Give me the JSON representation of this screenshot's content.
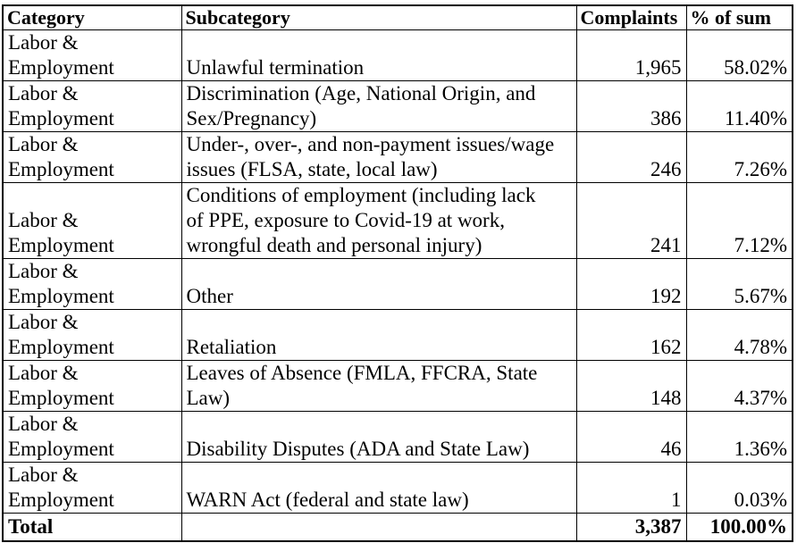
{
  "colors": {
    "background": "#ffffff",
    "border": "#000000",
    "text": "#000000"
  },
  "table": {
    "headers": {
      "category": "Category",
      "subcategory": "Subcategory",
      "complaints": "Complaints",
      "pct": "% of sum"
    },
    "rows": [
      {
        "category": "Labor &\nEmployment",
        "subcategory": "Unlawful termination",
        "complaints": "1,965",
        "pct": "58.02%"
      },
      {
        "category": "Labor &\nEmployment",
        "subcategory": "Discrimination (Age, National Origin, and\nSex/Pregnancy)",
        "complaints": "386",
        "pct": "11.40%"
      },
      {
        "category": "Labor &\nEmployment",
        "subcategory": "Under-, over-, and non-payment issues/wage\nissues (FLSA, state, local law)",
        "complaints": "246",
        "pct": "7.26%"
      },
      {
        "category": "Labor &\nEmployment",
        "subcategory": "Conditions of employment (including lack\nof PPE, exposure to Covid-19 at work,\nwrongful death and personal injury)",
        "complaints": "241",
        "pct": "7.12%"
      },
      {
        "category": "Labor &\nEmployment",
        "subcategory": "Other",
        "complaints": "192",
        "pct": "5.67%"
      },
      {
        "category": "Labor &\nEmployment",
        "subcategory": "Retaliation",
        "complaints": "162",
        "pct": "4.78%"
      },
      {
        "category": "Labor &\nEmployment",
        "subcategory": "Leaves of Absence (FMLA, FFCRA, State\nLaw)",
        "complaints": "148",
        "pct": "4.37%"
      },
      {
        "category": "Labor &\nEmployment",
        "subcategory": "Disability Disputes (ADA and State Law)",
        "complaints": "46",
        "pct": "1.36%"
      },
      {
        "category": "Labor &\nEmployment",
        "subcategory": "WARN Act (federal and state law)",
        "complaints": "1",
        "pct": "0.03%"
      }
    ],
    "total": {
      "label": "Total",
      "subcategory": "",
      "complaints": "3,387",
      "pct": "100.00%"
    }
  },
  "chart_data": {
    "type": "table",
    "columns": [
      "Category",
      "Subcategory",
      "Complaints",
      "% of sum"
    ],
    "rows": [
      [
        "Labor & Employment",
        "Unlawful termination",
        1965,
        58.02
      ],
      [
        "Labor & Employment",
        "Discrimination (Age, National Origin, and Sex/Pregnancy)",
        386,
        11.4
      ],
      [
        "Labor & Employment",
        "Under-, over-, and non-payment issues/wage issues (FLSA, state, local law)",
        246,
        7.26
      ],
      [
        "Labor & Employment",
        "Conditions of employment (including lack of PPE, exposure to Covid-19 at work, wrongful death and personal injury)",
        241,
        7.12
      ],
      [
        "Labor & Employment",
        "Other",
        192,
        5.67
      ],
      [
        "Labor & Employment",
        "Retaliation",
        162,
        4.78
      ],
      [
        "Labor & Employment",
        "Leaves of Absence (FMLA, FFCRA, State Law)",
        148,
        4.37
      ],
      [
        "Labor & Employment",
        "Disability Disputes (ADA and State Law)",
        46,
        1.36
      ],
      [
        "Labor & Employment",
        "WARN Act (federal and state law)",
        1,
        0.03
      ]
    ],
    "total": [
      "Total",
      "",
      3387,
      100.0
    ]
  }
}
